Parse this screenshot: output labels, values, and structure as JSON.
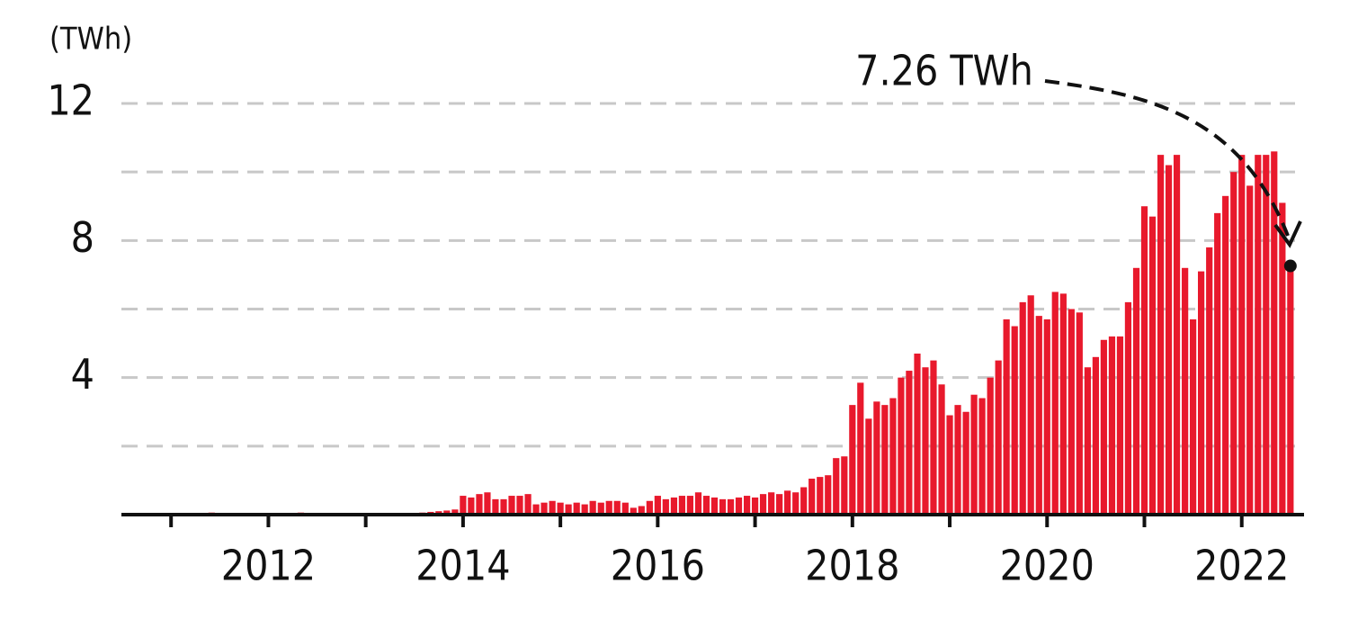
{
  "chart_data": {
    "type": "bar",
    "y_unit": "(TWh)",
    "annotation": "7.26 TWh",
    "color": "#e8192c",
    "x": [
      2011.25,
      2011.333,
      2011.417,
      2011.5,
      2011.583,
      2011.667,
      2011.75,
      2011.833,
      2011.917,
      2012,
      2012.083,
      2012.167,
      2012.25,
      2012.333,
      2012.417,
      2012.5,
      2012.583,
      2012.667,
      2012.75,
      2012.833,
      2012.917,
      2013,
      2013.083,
      2013.167,
      2013.25,
      2013.333,
      2013.417,
      2013.5,
      2013.583,
      2013.667,
      2013.75,
      2013.833,
      2013.917,
      2014,
      2014.083,
      2014.167,
      2014.25,
      2014.333,
      2014.417,
      2014.5,
      2014.583,
      2014.667,
      2014.75,
      2014.833,
      2014.917,
      2015,
      2015.083,
      2015.167,
      2015.25,
      2015.333,
      2015.417,
      2015.5,
      2015.583,
      2015.667,
      2015.75,
      2015.833,
      2015.917,
      2016,
      2016.083,
      2016.167,
      2016.25,
      2016.333,
      2016.417,
      2016.5,
      2016.583,
      2016.667,
      2016.75,
      2016.833,
      2016.917,
      2017,
      2017.083,
      2017.167,
      2017.25,
      2017.333,
      2017.417,
      2017.5,
      2017.583,
      2017.667,
      2017.75,
      2017.833,
      2017.917,
      2018,
      2018.083,
      2018.167,
      2018.25,
      2018.333,
      2018.417,
      2018.5,
      2018.583,
      2018.667,
      2018.75,
      2018.833,
      2018.917,
      2019,
      2019.083,
      2019.167,
      2019.25,
      2019.333,
      2019.417,
      2019.5,
      2019.583,
      2019.667,
      2019.75,
      2019.833,
      2019.917,
      2020,
      2020.083,
      2020.167,
      2020.25,
      2020.333,
      2020.417,
      2020.5,
      2020.583,
      2020.667,
      2020.75,
      2020.833,
      2020.917,
      2021,
      2021.083,
      2021.167,
      2021.25,
      2021.333,
      2021.417,
      2021.5,
      2021.583,
      2021.667,
      2021.75,
      2021.833,
      2021.917,
      2022,
      2022.083,
      2022.167,
      2022.25,
      2022.333,
      2022.417,
      2022.5
    ],
    "values": [
      0.05,
      0.05,
      0.06,
      0.05,
      0.05,
      0.04,
      0.04,
      0.05,
      0.05,
      0.05,
      0.05,
      0.05,
      0.05,
      0.06,
      0.05,
      0.05,
      0.05,
      0.05,
      0.04,
      0.05,
      0.05,
      0.05,
      0.05,
      0.04,
      0.05,
      0.05,
      0.05,
      0.05,
      0.06,
      0.08,
      0.1,
      0.12,
      0.15,
      0.55,
      0.5,
      0.6,
      0.65,
      0.45,
      0.45,
      0.55,
      0.55,
      0.6,
      0.3,
      0.35,
      0.4,
      0.35,
      0.3,
      0.35,
      0.3,
      0.4,
      0.35,
      0.4,
      0.4,
      0.35,
      0.2,
      0.25,
      0.4,
      0.55,
      0.45,
      0.5,
      0.55,
      0.55,
      0.65,
      0.55,
      0.5,
      0.45,
      0.45,
      0.5,
      0.55,
      0.5,
      0.6,
      0.65,
      0.6,
      0.7,
      0.65,
      0.8,
      1.05,
      1.1,
      1.15,
      1.65,
      1.7,
      3.2,
      3.85,
      2.8,
      3.3,
      3.2,
      3.4,
      4.0,
      4.2,
      4.7,
      4.3,
      4.5,
      3.8,
      2.9,
      3.2,
      3.0,
      3.5,
      3.4,
      4.0,
      4.5,
      5.7,
      5.5,
      6.2,
      6.4,
      5.8,
      5.7,
      6.5,
      6.45,
      6.0,
      5.9,
      4.3,
      4.6,
      5.1,
      5.2,
      5.2,
      6.2,
      7.2,
      9.0,
      8.7,
      10.5,
      10.2,
      10.5,
      7.2,
      5.7,
      7.1,
      7.8,
      8.8,
      9.3,
      10.0,
      10.5,
      9.6,
      10.5,
      10.5,
      10.6,
      9.1,
      7.26
    ],
    "xlim": [
      2010.49,
      2022.64
    ],
    "xticks": [
      2012,
      2014,
      2016,
      2018,
      2020,
      2022
    ],
    "xminorticks": [
      2011,
      2013,
      2015,
      2017,
      2019,
      2021
    ],
    "ylim": [
      0,
      12
    ],
    "yticks": [
      4,
      8,
      12
    ],
    "ygrid": [
      2,
      4,
      6,
      8,
      10,
      12
    ]
  }
}
